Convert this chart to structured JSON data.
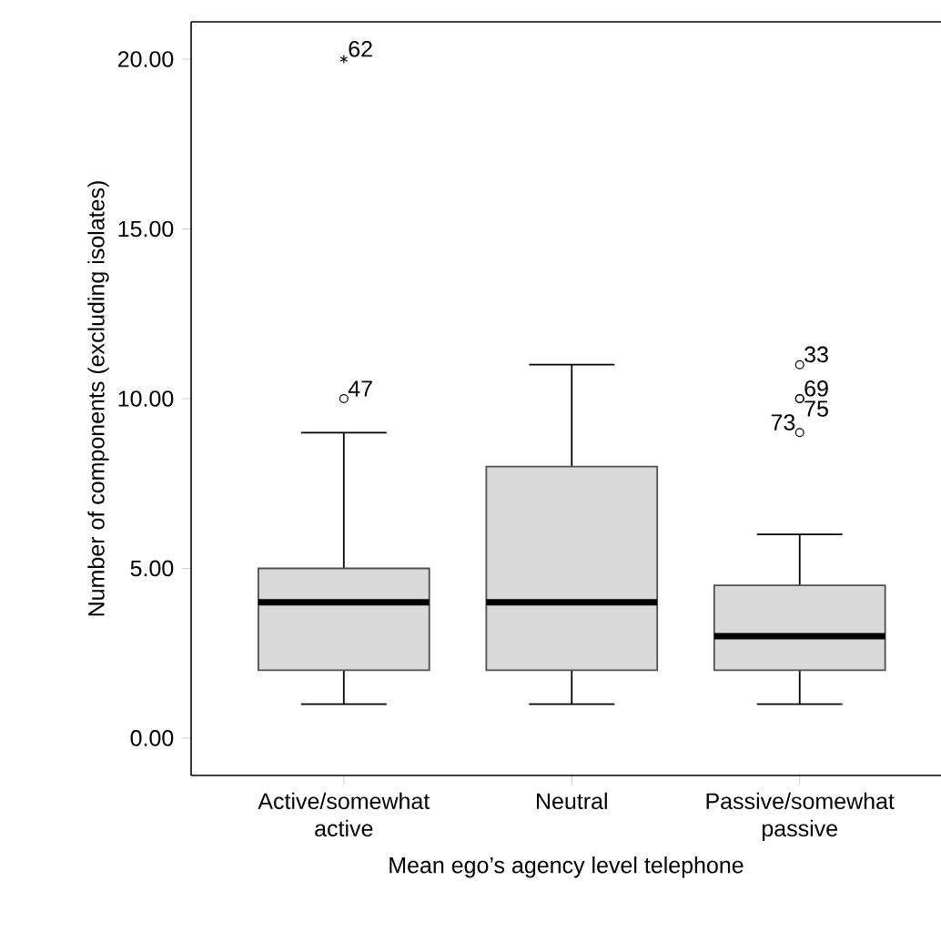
{
  "chart_data": {
    "type": "box",
    "xlabel": "Mean ego’s agency level telephone",
    "ylabel": "Number of components (excluding isolates)",
    "categories": [
      "Active/somewhat active",
      "Neutral",
      "Passive/somewhat passive"
    ],
    "color": "#d9d9d9",
    "marker": "circle",
    "grid": false,
    "boxes": [
      {
        "low": 1,
        "q1": 2,
        "median": 4,
        "q3": 5,
        "high": 9,
        "outliers": [
          10,
          20
        ]
      },
      {
        "low": 1,
        "q1": 2,
        "median": 4,
        "q3": 8,
        "high": 11
      },
      {
        "low": 1,
        "q1": 2,
        "median": 3,
        "q3": 4.5,
        "high": 6,
        "outliers": [
          9,
          10,
          10,
          11
        ]
      }
    ],
    "ylim": [
      -1.1,
      21.1
    ],
    "yticks": [
      {
        "value": 0,
        "label": "0.00"
      },
      {
        "value": 5,
        "label": "5.00"
      },
      {
        "value": 10,
        "label": "10.00"
      },
      {
        "value": 15,
        "label": "15.00"
      },
      {
        "value": 20,
        "label": "20.00"
      }
    ],
    "annotations": [
      "47",
      "62",
      "73",
      "69",
      "75",
      "33"
    ]
  }
}
